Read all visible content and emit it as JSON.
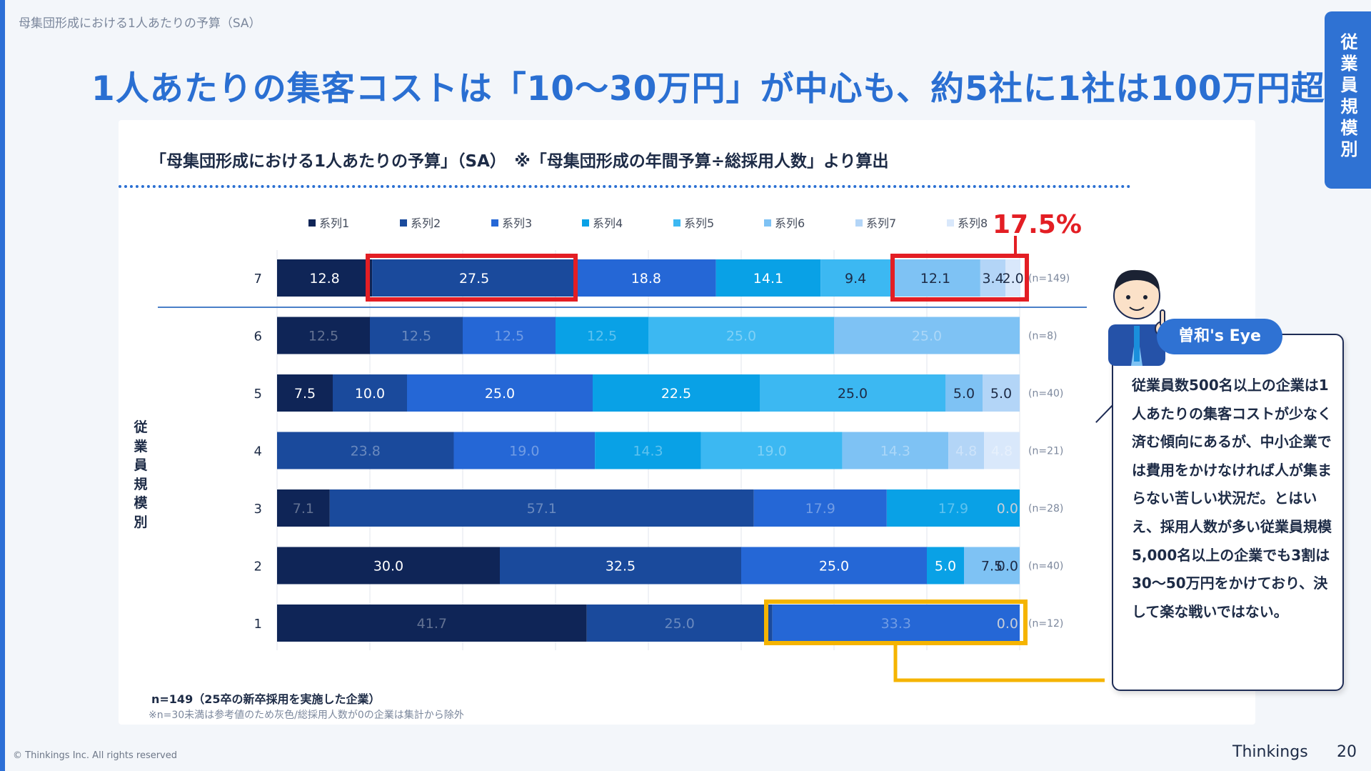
{
  "breadcrumb": "母集団形成における1人あたりの予算（SA）",
  "headline": "1人あたりの集客コストは「10〜30万円」が中心も、約5社に1社は100万円超",
  "side_tab": "従業員規模別",
  "subtitle": "「母集団形成における1人あたりの予算」（SA）　※「母集団形成の年間予算÷総採用人数」より算出",
  "axis_title": "従業員規模別",
  "callout_pct": "17.5%",
  "notes": {
    "n_total": "n=149（25卒の新卒採用を実施した企業）",
    "caveat": "※n=30未満は参考値のため灰色/総採用人数が0の企業は集計から除外"
  },
  "footer": {
    "copyright": "© Thinkings Inc. All rights reserved",
    "brand": "Thinkings",
    "page": "20"
  },
  "eye": {
    "label": "曽和's Eye",
    "text": "従業員数500名以上の企業は1人あたりの集客コストが少なく済む傾向にあるが、中小企業では費用をかけなければ人が集まらない苦しい状況だ。とはいえ、採用人数が多い従業員規模5,000名以上の企業でも3割は30〜50万円をかけており、決して楽な戦いではない。"
  },
  "chart_data": {
    "type": "bar",
    "orientation": "horizontal",
    "stacked": true,
    "x_range": [
      0,
      100
    ],
    "legend_position": "top",
    "categories": [
      "7",
      "6",
      "5",
      "4",
      "3",
      "2",
      "1"
    ],
    "series_names": [
      "系列1",
      "系列2",
      "系列3",
      "系列4",
      "系列5",
      "系列6",
      "系列7",
      "系列8"
    ],
    "colors": [
      "#0f2557",
      "#1a4a9c",
      "#2567d6",
      "#09a1e6",
      "#3cb8f2",
      "#7ec2f4",
      "#b3d5f7",
      "#d9e8fb"
    ],
    "rows": [
      {
        "category": "7",
        "values": [
          12.8,
          27.5,
          18.8,
          14.1,
          9.4,
          12.1,
          3.4,
          2.0
        ],
        "labels": [
          "12.8",
          "27.5",
          "18.8",
          "14.1",
          "9.4",
          "12.1",
          "3.4",
          "2.0"
        ],
        "n": "(n=149)",
        "faded": false
      },
      {
        "category": "6",
        "values": [
          12.5,
          12.5,
          12.5,
          12.5,
          25.0,
          25.0,
          0,
          0
        ],
        "labels": [
          "12.5",
          "12.5",
          "12.5",
          "12.5",
          "25.0",
          "25.0",
          "",
          ""
        ],
        "n": "(n=8)",
        "faded": true
      },
      {
        "category": "5",
        "values": [
          7.5,
          10.0,
          25.0,
          22.5,
          25.0,
          5.0,
          5.0,
          0
        ],
        "labels": [
          "7.5",
          "10.0",
          "25.0",
          "22.5",
          "25.0",
          "5.0",
          "5.0",
          ""
        ],
        "n": "(n=40)",
        "faded": false
      },
      {
        "category": "4",
        "values": [
          0,
          23.8,
          19.0,
          14.3,
          19.0,
          14.3,
          4.8,
          4.8
        ],
        "labels": [
          "",
          "23.8",
          "19.0",
          "14.3",
          "19.0",
          "14.3",
          "4.8",
          "4.8"
        ],
        "n": "(n=21)",
        "faded": true
      },
      {
        "category": "3",
        "values": [
          7.1,
          57.1,
          17.9,
          17.9,
          0,
          0,
          0,
          0
        ],
        "labels": [
          "7.1",
          "57.1",
          "17.9",
          "17.9",
          "",
          "",
          "",
          "0.0"
        ],
        "n": "(n=28)",
        "faded": true
      },
      {
        "category": "2",
        "values": [
          30.0,
          32.5,
          25.0,
          5.0,
          0,
          7.5,
          0,
          0
        ],
        "labels": [
          "30.0",
          "32.5",
          "25.0",
          "5.0",
          "",
          "7.5",
          "",
          "0.0"
        ],
        "n": "(n=40)",
        "faded": false
      },
      {
        "category": "1",
        "values": [
          41.7,
          25.0,
          33.3,
          0,
          0,
          0,
          0,
          0
        ],
        "labels": [
          "41.7",
          "25.0",
          "33.3",
          "",
          "",
          "",
          "",
          "0.0"
        ],
        "n": "(n=12)",
        "faded": true
      }
    ]
  }
}
